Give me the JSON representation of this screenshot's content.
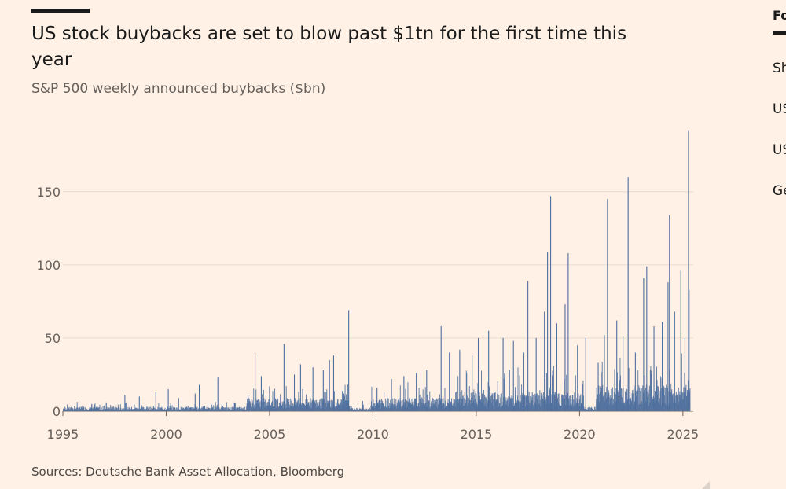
{
  "header": {
    "title": "US stock buybacks are set to blow past $1tn for the first time this year",
    "subtitle": "S&P 500 weekly announced buybacks ($bn)"
  },
  "footer": {
    "source": "Sources: Deutsche Bank Asset Allocation, Bloomberg"
  },
  "sidebar": {
    "heading": "Fo",
    "links": [
      "Sh",
      "US",
      "US",
      "Ge"
    ]
  },
  "colors": {
    "background": "#fff1e5",
    "bar": "#4e6e9e",
    "grid": "#e6dbd1",
    "text": "#1a1a1a"
  },
  "chart_data": {
    "type": "bar",
    "title": "US stock buybacks are set to blow past $1tn for the first time this year",
    "subtitle": "S&P 500 weekly announced buybacks ($bn)",
    "xlabel": "",
    "ylabel": "",
    "xlim": [
      1995.0,
      2025.5
    ],
    "ylim": [
      0,
      195
    ],
    "yticks": [
      0,
      50,
      100,
      150
    ],
    "xticks": [
      1995,
      2000,
      2005,
      2010,
      2015,
      2020,
      2025
    ],
    "grid": true,
    "series": [
      {
        "values_by_year_spikes": [
          {
            "x": 1996.4,
            "y": 5
          },
          {
            "x": 1997.1,
            "y": 6
          },
          {
            "x": 1998.0,
            "y": 11
          },
          {
            "x": 1998.7,
            "y": 10
          },
          {
            "x": 1999.5,
            "y": 13
          },
          {
            "x": 2000.1,
            "y": 15
          },
          {
            "x": 2000.6,
            "y": 9
          },
          {
            "x": 2001.4,
            "y": 12
          },
          {
            "x": 2001.6,
            "y": 18
          },
          {
            "x": 2002.5,
            "y": 23
          },
          {
            "x": 2003.3,
            "y": 6
          },
          {
            "x": 2004.3,
            "y": 40
          },
          {
            "x": 2004.6,
            "y": 24
          },
          {
            "x": 2005.0,
            "y": 17
          },
          {
            "x": 2005.7,
            "y": 46
          },
          {
            "x": 2006.2,
            "y": 25
          },
          {
            "x": 2006.5,
            "y": 32
          },
          {
            "x": 2007.1,
            "y": 30
          },
          {
            "x": 2007.6,
            "y": 28
          },
          {
            "x": 2007.9,
            "y": 35
          },
          {
            "x": 2008.1,
            "y": 38
          },
          {
            "x": 2008.6,
            "y": 12
          },
          {
            "x": 2008.83,
            "y": 69
          },
          {
            "x": 2009.5,
            "y": 7
          },
          {
            "x": 2010.2,
            "y": 16
          },
          {
            "x": 2010.9,
            "y": 22
          },
          {
            "x": 2011.5,
            "y": 24
          },
          {
            "x": 2012.1,
            "y": 26
          },
          {
            "x": 2012.6,
            "y": 28
          },
          {
            "x": 2013.3,
            "y": 58
          },
          {
            "x": 2013.7,
            "y": 40
          },
          {
            "x": 2014.2,
            "y": 42
          },
          {
            "x": 2014.8,
            "y": 38
          },
          {
            "x": 2015.1,
            "y": 50
          },
          {
            "x": 2015.6,
            "y": 55
          },
          {
            "x": 2016.3,
            "y": 50
          },
          {
            "x": 2016.8,
            "y": 48
          },
          {
            "x": 2017.3,
            "y": 40
          },
          {
            "x": 2017.5,
            "y": 89
          },
          {
            "x": 2017.9,
            "y": 50
          },
          {
            "x": 2018.3,
            "y": 68
          },
          {
            "x": 2018.45,
            "y": 109
          },
          {
            "x": 2018.6,
            "y": 147
          },
          {
            "x": 2018.9,
            "y": 60
          },
          {
            "x": 2019.3,
            "y": 73
          },
          {
            "x": 2019.45,
            "y": 108
          },
          {
            "x": 2019.9,
            "y": 45
          },
          {
            "x": 2020.3,
            "y": 50
          },
          {
            "x": 2020.9,
            "y": 33
          },
          {
            "x": 2021.2,
            "y": 52
          },
          {
            "x": 2021.35,
            "y": 145
          },
          {
            "x": 2021.8,
            "y": 62
          },
          {
            "x": 2022.1,
            "y": 51
          },
          {
            "x": 2022.35,
            "y": 160
          },
          {
            "x": 2022.7,
            "y": 40
          },
          {
            "x": 2023.1,
            "y": 91
          },
          {
            "x": 2023.25,
            "y": 99
          },
          {
            "x": 2023.6,
            "y": 58
          },
          {
            "x": 2024.0,
            "y": 61
          },
          {
            "x": 2024.28,
            "y": 88
          },
          {
            "x": 2024.35,
            "y": 134
          },
          {
            "x": 2024.6,
            "y": 68
          },
          {
            "x": 2024.9,
            "y": 96
          },
          {
            "x": 2025.1,
            "y": 50
          },
          {
            "x": 2025.27,
            "y": 192
          },
          {
            "x": 2025.3,
            "y": 83
          }
        ],
        "baseline_by_period": [
          {
            "from": 1995.0,
            "to": 2003.9,
            "typical": 2,
            "spread": 4
          },
          {
            "from": 2003.9,
            "to": 2008.9,
            "typical": 6,
            "spread": 12
          },
          {
            "from": 2008.9,
            "to": 2009.9,
            "typical": 1.5,
            "spread": 3
          },
          {
            "from": 2009.9,
            "to": 2014.0,
            "typical": 6,
            "spread": 14
          },
          {
            "from": 2014.0,
            "to": 2020.2,
            "typical": 9,
            "spread": 20
          },
          {
            "from": 2020.2,
            "to": 2020.8,
            "typical": 2,
            "spread": 3
          },
          {
            "from": 2020.8,
            "to": 2025.35,
            "typical": 12,
            "spread": 24
          }
        ]
      }
    ]
  }
}
